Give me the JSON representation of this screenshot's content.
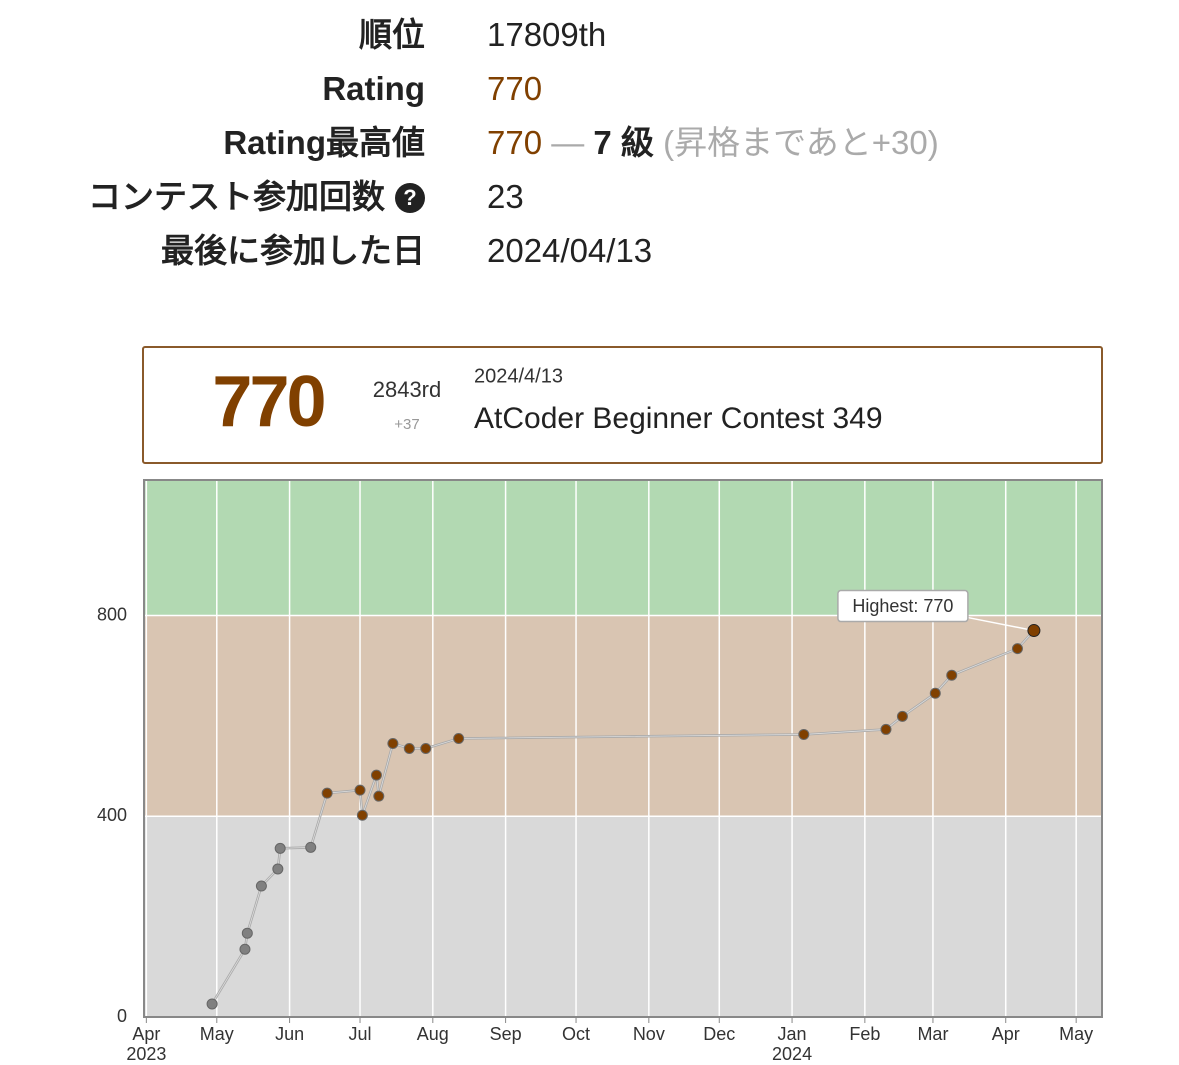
{
  "profile": {
    "rows": [
      {
        "label": "順位",
        "value": "17809th"
      },
      {
        "label": "Rating",
        "value": "770"
      },
      {
        "label": "Rating最高値",
        "value": "770",
        "separator": "—",
        "rank": "7 級",
        "note": "(昇格まであと+30)"
      },
      {
        "label": "コンテスト参加回数",
        "value": "23"
      },
      {
        "label": "最後に参加した日",
        "value": "2024/04/13"
      }
    ]
  },
  "card": {
    "rating": "770",
    "place": "2843rd",
    "diff": "+37",
    "date": "2024/4/13",
    "contest": "AtCoder Beginner Contest 349"
  },
  "chart_data": {
    "type": "line",
    "x": [
      "2023-04-29",
      "2023-05-13",
      "2023-05-14",
      "2023-05-20",
      "2023-05-27",
      "2023-05-28",
      "2023-06-10",
      "2023-06-17",
      "2023-07-01",
      "2023-07-02",
      "2023-07-08",
      "2023-07-09",
      "2023-07-15",
      "2023-07-22",
      "2023-07-29",
      "2023-08-12",
      "2024-01-06",
      "2024-02-10",
      "2024-02-17",
      "2024-03-02",
      "2024-03-09",
      "2024-04-06",
      "2024-04-13"
    ],
    "series": [
      {
        "name": "Rating",
        "color": "#aaaaaa",
        "values": [
          26,
          135,
          167,
          261,
          295,
          336,
          338,
          446,
          452,
          402,
          482,
          440,
          545,
          535,
          535,
          555,
          563,
          573,
          599,
          645,
          681,
          734,
          770
        ]
      }
    ],
    "xlim": [
      "2023-03-31",
      "2024-05-12"
    ],
    "ylim": [
      0,
      1070
    ],
    "yticks": [
      0,
      400,
      800
    ],
    "xticks": [
      {
        "value": "2023-04-01",
        "label": "Apr"
      },
      {
        "value": "2023-05-01",
        "label": "May"
      },
      {
        "value": "2023-06-01",
        "label": "Jun"
      },
      {
        "value": "2023-07-01",
        "label": "Jul"
      },
      {
        "value": "2023-08-01",
        "label": "Aug"
      },
      {
        "value": "2023-09-01",
        "label": "Sep"
      },
      {
        "value": "2023-10-01",
        "label": "Oct"
      },
      {
        "value": "2023-11-01",
        "label": "Nov"
      },
      {
        "value": "2023-12-01",
        "label": "Dec"
      },
      {
        "value": "2024-01-01",
        "label": "Jan"
      },
      {
        "value": "2024-02-01",
        "label": "Feb"
      },
      {
        "value": "2024-03-01",
        "label": "Mar"
      },
      {
        "value": "2024-04-01",
        "label": "Apr"
      },
      {
        "value": "2024-05-01",
        "label": "May"
      }
    ],
    "xtick_years": [
      {
        "value": "2023-04-01",
        "label": "2023"
      },
      {
        "value": "2024-01-01",
        "label": "2024"
      }
    ],
    "bands": [
      {
        "from": 0,
        "color": "#d9d9d9",
        "marker_color": "#808080"
      },
      {
        "from": 400,
        "color": "#d9c5b2",
        "marker_color": "#804000"
      },
      {
        "from": 800,
        "color": "#b2d9b2",
        "marker_color": "#008000"
      }
    ],
    "grid": true,
    "annotation": "Highest: 770"
  }
}
